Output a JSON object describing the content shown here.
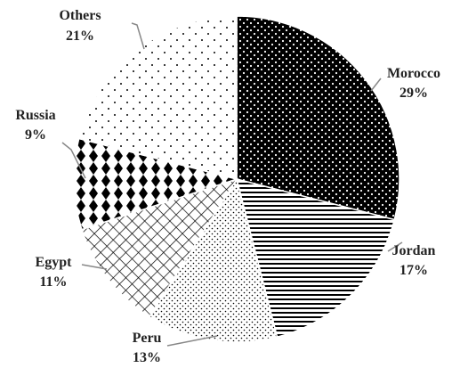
{
  "chart_data": {
    "type": "pie",
    "categories": [
      "Morocco",
      "Jordan",
      "Peru",
      "Egypt",
      "Russia",
      "Others"
    ],
    "values": [
      29,
      17,
      13,
      11,
      9,
      21
    ],
    "value_labels": [
      "29%",
      "17%",
      "13%",
      "11%",
      "9%",
      "21%"
    ]
  }
}
